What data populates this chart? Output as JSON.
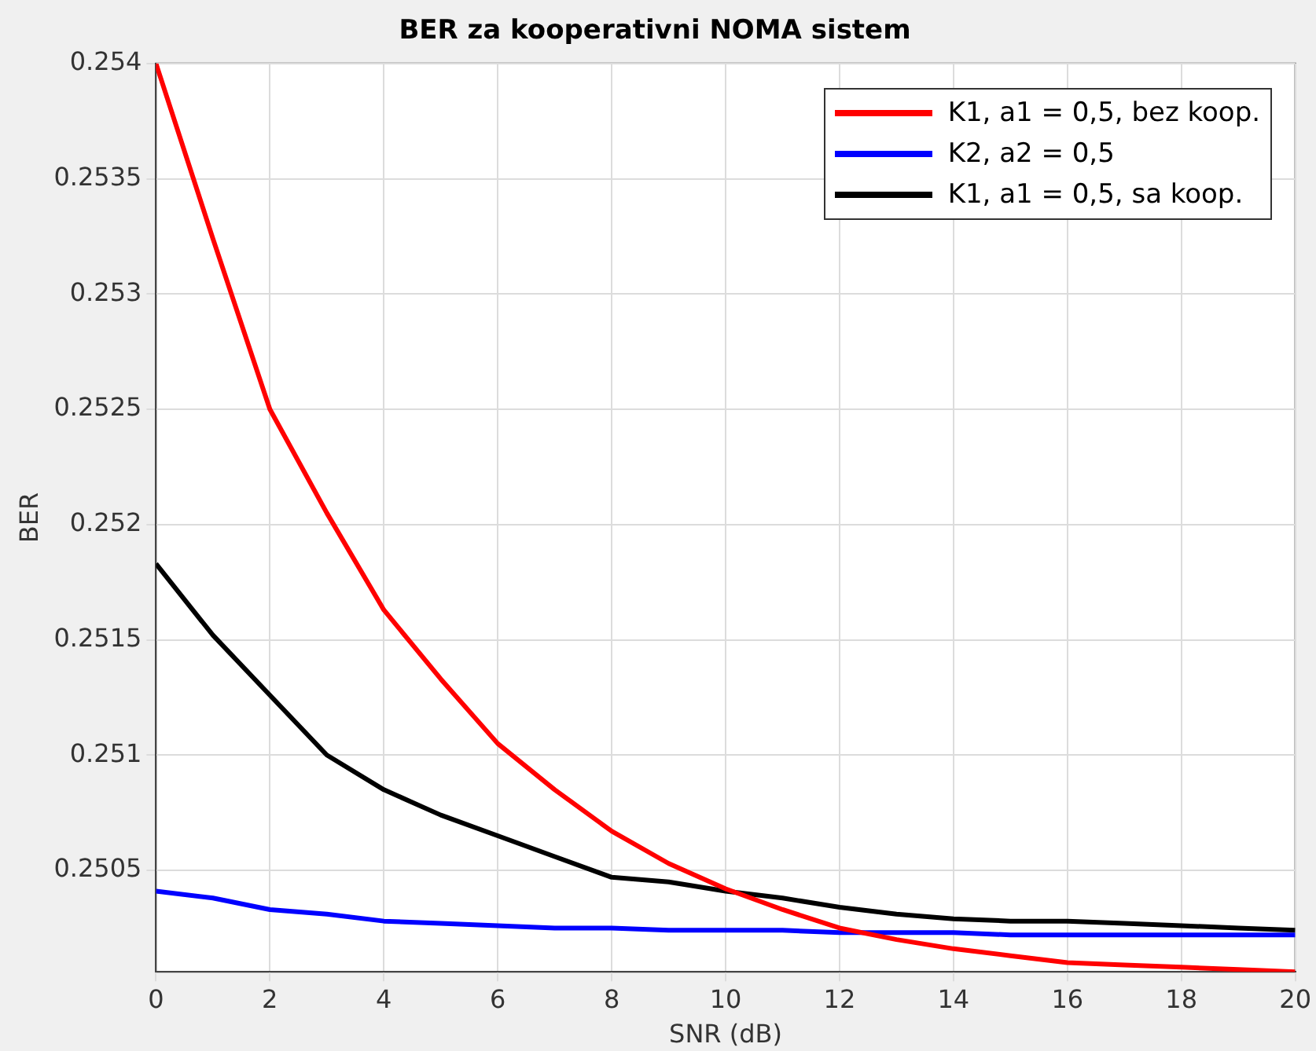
{
  "chart_data": {
    "type": "line",
    "title": "BER za kooperativni NOMA sistem",
    "xlabel": "SNR (dB)",
    "ylabel": "BER",
    "x": [
      0,
      1,
      2,
      3,
      4,
      5,
      6,
      7,
      8,
      9,
      10,
      11,
      12,
      13,
      14,
      15,
      16,
      17,
      18,
      19,
      20
    ],
    "series": [
      {
        "name": "K1, a1 = 0,5, bez koop.",
        "color": "#ff0000",
        "values": [
          0.254,
          0.25324,
          0.2525,
          0.25205,
          0.25163,
          0.25133,
          0.25105,
          0.25085,
          0.25067,
          0.25053,
          0.25042,
          0.25033,
          0.25025,
          0.2502,
          0.25016,
          0.25013,
          0.2501,
          0.25009,
          0.25008,
          0.25007,
          0.25006
        ]
      },
      {
        "name": "K2, a2 = 0,5",
        "color": "#0000ff",
        "values": [
          0.25041,
          0.25038,
          0.25033,
          0.25031,
          0.25028,
          0.25027,
          0.25026,
          0.25025,
          0.25025,
          0.25024,
          0.25024,
          0.25024,
          0.25023,
          0.25023,
          0.25023,
          0.25022,
          0.25022,
          0.25022,
          0.25022,
          0.25022,
          0.25022
        ]
      },
      {
        "name": "K1, a1 = 0,5, sa koop.",
        "color": "#000000",
        "values": [
          0.25183,
          0.25152,
          0.25126,
          0.251,
          0.25085,
          0.25074,
          0.25065,
          0.25056,
          0.25047,
          0.25045,
          0.25041,
          0.25038,
          0.25034,
          0.25031,
          0.25029,
          0.25028,
          0.25028,
          0.25027,
          0.25026,
          0.25025,
          0.25024
        ]
      }
    ],
    "xlim": [
      0,
      20
    ],
    "xticks": [
      0,
      2,
      4,
      6,
      8,
      10,
      12,
      14,
      16,
      18,
      20
    ],
    "ylim": [
      0.25006,
      0.254
    ],
    "yticks": [
      0.2505,
      0.251,
      0.2515,
      0.252,
      0.2525,
      0.253,
      0.2535,
      0.254
    ],
    "grid": true,
    "legend": "top right",
    "marker": "none",
    "line_style": "solid"
  }
}
